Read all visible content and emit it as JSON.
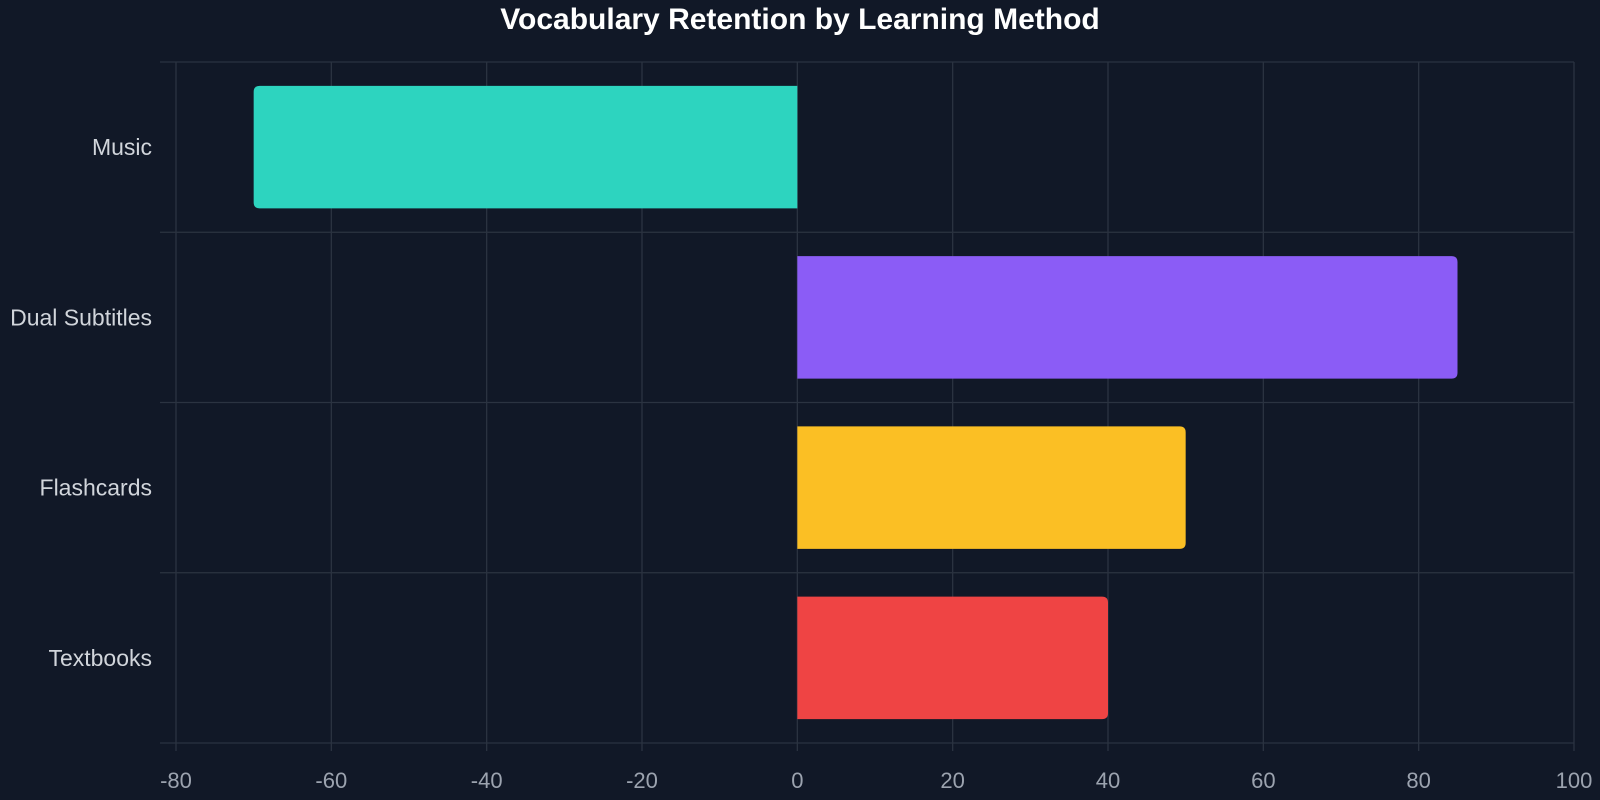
{
  "chart_data": {
    "type": "bar",
    "orientation": "horizontal",
    "title": "Vocabulary Retention by Learning Method",
    "categories": [
      "Music",
      "Dual Subtitles",
      "Flashcards",
      "Textbooks"
    ],
    "values": [
      -70,
      85,
      50,
      40
    ],
    "colors": [
      "#2dd4bf",
      "#8b5cf6",
      "#fbbf24",
      "#ef4444"
    ],
    "xlim": [
      -80,
      100
    ],
    "xticks": [
      -80,
      -60,
      -40,
      -20,
      0,
      20,
      40,
      60,
      80,
      100
    ],
    "grid": true,
    "legend": "none",
    "gridColor": "#2b3341",
    "tickColor": "#9ca3af",
    "labelColor": "#d1d5db",
    "background": "#111827"
  }
}
